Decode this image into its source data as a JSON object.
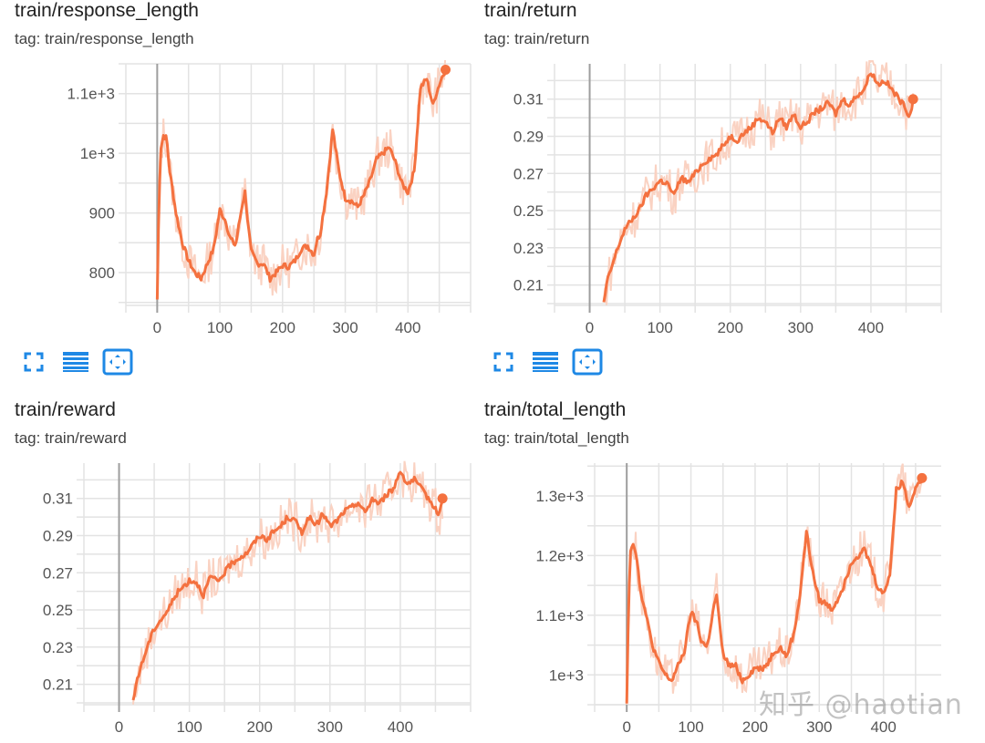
{
  "colors": {
    "line": "#f4713f",
    "raw": "#fad2c2",
    "grid": "#e3e3e3",
    "axis_zero": "#9e9e9e",
    "icon": "#1e88e5"
  },
  "watermark": "知乎 @haotian",
  "panels": [
    {
      "title": "train/response_length",
      "tag": "tag: train/response_length",
      "icons": [
        "fullscreen-icon",
        "data-table-icon",
        "fit-domain-icon"
      ]
    },
    {
      "title": "train/return",
      "tag": "tag: train/return",
      "icons": [
        "fullscreen-icon",
        "data-table-icon",
        "fit-domain-icon"
      ]
    },
    {
      "title": "train/reward",
      "tag": "tag: train/reward"
    },
    {
      "title": "train/total_length",
      "tag": "tag: train/total_length"
    }
  ],
  "chart_data": [
    {
      "type": "line",
      "xlim": [
        -50,
        500
      ],
      "ylim": [
        745,
        1150
      ],
      "x_ticks": [
        0,
        100,
        200,
        300,
        400
      ],
      "x_tick_labels": [
        "0",
        "100",
        "200",
        "300",
        "400"
      ],
      "y_ticks": [
        800,
        900,
        1000,
        1100
      ],
      "y_tick_labels": [
        "800",
        "900",
        "1e+3",
        "1.1e+3"
      ],
      "grid": true,
      "series": [
        {
          "x": [
            0,
            3,
            6,
            10,
            15,
            20,
            30,
            40,
            50,
            60,
            70,
            80,
            90,
            100,
            105,
            110,
            115,
            125,
            135,
            140,
            145,
            150,
            160,
            170,
            180,
            190,
            200,
            210,
            220,
            230,
            240,
            250,
            255,
            260,
            270,
            280,
            290,
            300,
            310,
            320,
            330,
            340,
            350,
            360,
            370,
            380,
            390,
            400,
            410,
            420,
            430,
            440,
            445,
            450,
            455,
            460
          ],
          "y": [
            755,
            930,
            1010,
            1030,
            1025,
            970,
            900,
            850,
            820,
            800,
            790,
            815,
            840,
            905,
            895,
            885,
            860,
            845,
            910,
            935,
            880,
            835,
            815,
            815,
            790,
            800,
            812,
            810,
            820,
            840,
            845,
            830,
            855,
            865,
            935,
            1040,
            970,
            925,
            920,
            910,
            930,
            955,
            990,
            1000,
            1010,
            985,
            950,
            935,
            970,
            1110,
            1125,
            1080,
            1100,
            1115,
            1130,
            1140
          ]
        }
      ]
    },
    {
      "type": "line",
      "xlim": [
        -50,
        500
      ],
      "ylim": [
        0.199,
        0.329
      ],
      "x_ticks": [
        0,
        100,
        200,
        300,
        400
      ],
      "x_tick_labels": [
        "0",
        "100",
        "200",
        "300",
        "400"
      ],
      "y_ticks": [
        0.21,
        0.23,
        0.25,
        0.27,
        0.29,
        0.31
      ],
      "y_tick_labels": [
        "0.21",
        "0.23",
        "0.25",
        "0.27",
        "0.29",
        "0.31"
      ],
      "grid": true,
      "series": [
        {
          "x": [
            20,
            25,
            30,
            40,
            50,
            60,
            70,
            80,
            90,
            100,
            110,
            120,
            130,
            140,
            150,
            160,
            170,
            180,
            190,
            200,
            210,
            220,
            230,
            240,
            250,
            260,
            270,
            280,
            290,
            300,
            310,
            320,
            330,
            340,
            350,
            360,
            370,
            380,
            390,
            400,
            410,
            420,
            430,
            440,
            450,
            455,
            460
          ],
          "y": [
            0.2,
            0.212,
            0.218,
            0.23,
            0.24,
            0.245,
            0.25,
            0.258,
            0.262,
            0.266,
            0.265,
            0.258,
            0.268,
            0.265,
            0.27,
            0.275,
            0.278,
            0.28,
            0.285,
            0.29,
            0.288,
            0.292,
            0.295,
            0.3,
            0.298,
            0.292,
            0.3,
            0.295,
            0.302,
            0.295,
            0.298,
            0.303,
            0.305,
            0.308,
            0.302,
            0.31,
            0.307,
            0.312,
            0.315,
            0.325,
            0.318,
            0.32,
            0.315,
            0.31,
            0.305,
            0.3,
            0.31
          ]
        }
      ]
    },
    {
      "type": "line",
      "xlim": [
        -50,
        500
      ],
      "ylim": [
        0.199,
        0.329
      ],
      "x_ticks": [
        0,
        100,
        200,
        300,
        400
      ],
      "x_tick_labels": [
        "0",
        "100",
        "200",
        "300",
        "400"
      ],
      "y_ticks": [
        0.21,
        0.23,
        0.25,
        0.27,
        0.29,
        0.31
      ],
      "y_tick_labels": [
        "0.21",
        "0.23",
        "0.25",
        "0.27",
        "0.29",
        "0.31"
      ],
      "grid": true,
      "series": [
        {
          "x": [
            20,
            25,
            30,
            40,
            50,
            60,
            70,
            80,
            90,
            100,
            110,
            120,
            130,
            140,
            150,
            160,
            170,
            180,
            190,
            200,
            210,
            220,
            230,
            240,
            250,
            260,
            270,
            280,
            290,
            300,
            310,
            320,
            330,
            340,
            350,
            360,
            370,
            380,
            390,
            400,
            410,
            420,
            430,
            440,
            450,
            455,
            460
          ],
          "y": [
            0.2,
            0.212,
            0.218,
            0.23,
            0.24,
            0.245,
            0.25,
            0.258,
            0.262,
            0.266,
            0.265,
            0.258,
            0.268,
            0.265,
            0.27,
            0.275,
            0.278,
            0.28,
            0.285,
            0.29,
            0.288,
            0.292,
            0.295,
            0.3,
            0.298,
            0.292,
            0.3,
            0.295,
            0.302,
            0.295,
            0.298,
            0.303,
            0.305,
            0.308,
            0.302,
            0.31,
            0.307,
            0.312,
            0.315,
            0.325,
            0.318,
            0.32,
            0.315,
            0.31,
            0.305,
            0.3,
            0.31
          ]
        }
      ]
    },
    {
      "type": "line",
      "xlim": [
        -50,
        490
      ],
      "ylim": [
        950,
        1355
      ],
      "x_ticks": [
        0,
        100,
        200,
        300,
        400
      ],
      "x_tick_labels": [
        "0",
        "100",
        "200",
        "300",
        "400"
      ],
      "y_ticks": [
        1000,
        1100,
        1200,
        1300
      ],
      "y_tick_labels": [
        "1e+3",
        "1.1e+3",
        "1.2e+3",
        "1.3e+3"
      ],
      "grid": true,
      "series": [
        {
          "x": [
            0,
            3,
            6,
            10,
            15,
            20,
            30,
            40,
            50,
            60,
            70,
            80,
            90,
            100,
            105,
            110,
            115,
            125,
            135,
            140,
            145,
            150,
            160,
            170,
            180,
            190,
            200,
            210,
            220,
            230,
            240,
            250,
            255,
            260,
            270,
            280,
            290,
            300,
            310,
            320,
            330,
            340,
            350,
            360,
            370,
            380,
            390,
            400,
            410,
            420,
            430,
            440,
            445,
            450,
            455,
            460
          ],
          "y": [
            955,
            1130,
            1210,
            1220,
            1205,
            1150,
            1100,
            1050,
            1020,
            1000,
            990,
            1015,
            1040,
            1105,
            1095,
            1085,
            1060,
            1045,
            1110,
            1135,
            1080,
            1035,
            1015,
            1015,
            990,
            1000,
            1012,
            1010,
            1020,
            1040,
            1045,
            1030,
            1055,
            1065,
            1135,
            1240,
            1170,
            1125,
            1120,
            1110,
            1130,
            1155,
            1190,
            1200,
            1210,
            1185,
            1150,
            1135,
            1170,
            1310,
            1325,
            1280,
            1300,
            1315,
            1320,
            1330
          ]
        }
      ]
    }
  ]
}
